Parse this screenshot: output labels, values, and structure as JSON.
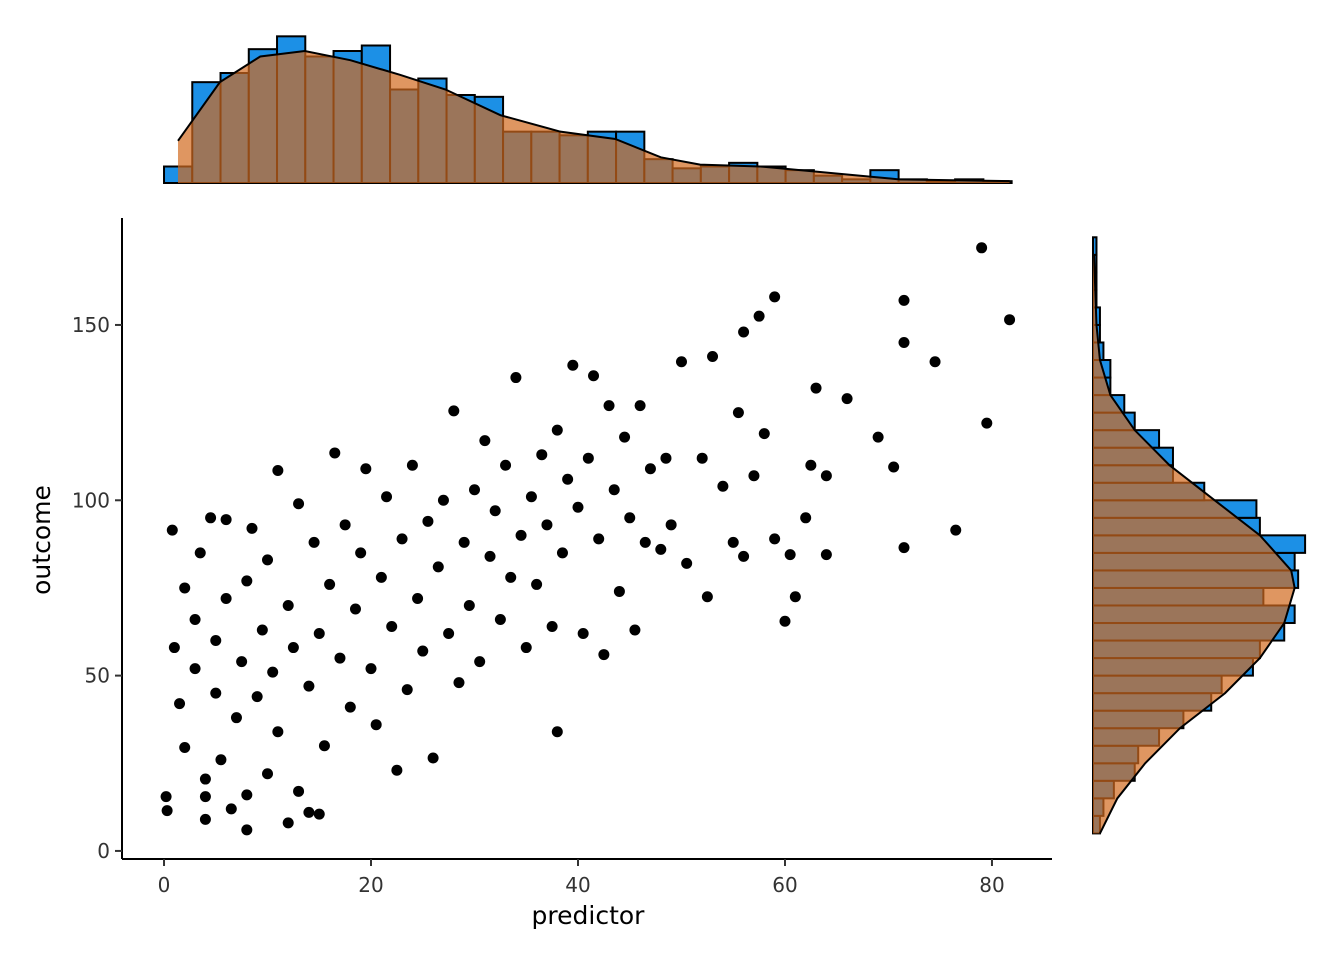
{
  "chart_data": [
    {
      "type": "scatter",
      "x_label": "predictor",
      "y_label": "outcome",
      "color": "#000000",
      "xlim": [
        -4.06,
        85.8
      ],
      "ylim": [
        -2.3,
        180.5
      ],
      "xticks": [
        0,
        20,
        40,
        60,
        80
      ],
      "yticks": [
        0,
        50,
        100,
        150
      ],
      "x": [
        0.2,
        0.3,
        0.8,
        1,
        1.5,
        2,
        2,
        3,
        3,
        3.5,
        4,
        4,
        4.5,
        4,
        5,
        5,
        5.5,
        6,
        6,
        6.5,
        7,
        7.5,
        8,
        8,
        8,
        8.5,
        9,
        9.5,
        10,
        10,
        10.5,
        11,
        11,
        12,
        12,
        12.5,
        13,
        13,
        14,
        14.5,
        14,
        15,
        15,
        15.5,
        16,
        16.5,
        17,
        17.5,
        18,
        18.5,
        19,
        19.5,
        20,
        20.5,
        21,
        21.5,
        22,
        22.5,
        23,
        23.5,
        24,
        24.5,
        25,
        25.5,
        26,
        26.5,
        27,
        27.5,
        28,
        28.5,
        29,
        29.5,
        30,
        30.5,
        31,
        31.5,
        32,
        32.5,
        33,
        33.5,
        34,
        34.5,
        35,
        35.5,
        36,
        36.5,
        37,
        37.5,
        38,
        38,
        38.5,
        39,
        39.5,
        40,
        40.5,
        41,
        41.5,
        42,
        42.5,
        43,
        43.5,
        44,
        44.5,
        45,
        45.5,
        46,
        46.5,
        47,
        48,
        48.5,
        49,
        50,
        50.5,
        52,
        52.5,
        53,
        54,
        55,
        55.5,
        56,
        56,
        57,
        57.5,
        58,
        59,
        59,
        60,
        60.5,
        61,
        62,
        62.5,
        63,
        64,
        64,
        66,
        69,
        70.5,
        71.5,
        71.5,
        71.5,
        74.5,
        76.5,
        79,
        79.5,
        81.7
      ],
      "y": [
        15.5,
        11.5,
        91.5,
        58,
        42,
        75,
        29.5,
        66,
        52,
        85,
        20.5,
        9,
        95,
        15.5,
        60,
        45,
        26,
        72,
        94.5,
        12,
        38,
        54,
        6,
        16,
        77,
        92,
        44,
        63,
        22,
        83,
        51,
        34,
        108.5,
        8,
        70,
        58,
        17,
        99,
        47,
        88,
        11,
        10.5,
        62,
        30,
        76,
        113.5,
        55,
        93,
        41,
        69,
        85,
        109,
        52,
        36,
        78,
        101,
        64,
        23,
        89,
        46,
        110,
        72,
        57,
        94,
        26.5,
        81,
        100,
        62,
        125.5,
        48,
        88,
        70,
        103,
        54,
        117,
        84,
        97,
        66,
        110,
        78,
        135,
        90,
        58,
        101,
        76,
        113,
        93,
        64,
        120,
        34,
        85,
        106,
        138.5,
        98,
        62,
        112,
        135.5,
        89,
        56,
        127,
        103,
        74,
        118,
        95,
        63,
        127,
        88,
        109,
        86,
        112,
        93,
        139.5,
        82,
        112,
        72.5,
        141,
        104,
        88,
        125,
        148,
        84,
        107,
        152.5,
        119,
        158,
        89,
        65.5,
        84.5,
        72.5,
        95,
        110,
        132,
        84.5,
        107,
        129,
        118,
        109.5,
        86.5,
        157,
        145,
        139.5,
        91.5,
        172,
        122,
        151.5
      ]
    },
    {
      "type": "histogram",
      "orientation": "vertical",
      "color": "#1c90e6",
      "density_color": "#d2691e",
      "xlim": [
        -4.06,
        85.8
      ],
      "ylim": [
        0,
        84
      ],
      "bins": [
        0,
        2.73,
        5.46,
        8.19,
        10.92,
        13.65,
        16.38,
        19.11,
        21.84,
        24.57,
        27.3,
        30.03,
        32.76,
        35.49,
        38.22,
        40.95,
        43.68,
        46.41,
        49.14,
        51.87,
        54.6,
        57.33,
        60.06,
        62.79,
        65.52,
        68.25,
        70.98,
        73.71,
        76.44,
        79.17,
        81.9
      ],
      "counts": [
        9,
        55,
        60,
        73,
        80,
        69,
        72,
        75,
        51,
        57,
        48,
        47,
        28,
        28,
        26,
        28,
        28,
        13,
        8,
        9,
        11,
        9,
        7,
        4,
        2,
        7,
        2,
        1,
        2,
        1
      ],
      "density": {
        "at": [
          1.35,
          5.4,
          9.3,
          13.6,
          18,
          22.8,
          27.2,
          32.5,
          38.3,
          43.6,
          48,
          51.8,
          57.6,
          63.4,
          71,
          81.7
        ],
        "counts": [
          23,
          55,
          69,
          72,
          67,
          59,
          51,
          37,
          28,
          24,
          14,
          10,
          9,
          6,
          2,
          1
        ]
      }
    },
    {
      "type": "histogram",
      "orientation": "horizontal",
      "color": "#1c90e6",
      "density_color": "#d2691e",
      "ylim": [
        -2.3,
        180.5
      ],
      "xlim": [
        0,
        65
      ],
      "bins": [
        5,
        10,
        15,
        20,
        25,
        30,
        35,
        40,
        45,
        50,
        55,
        60,
        65,
        70,
        75,
        80,
        85,
        90,
        95,
        100,
        105,
        110,
        115,
        120,
        125,
        130,
        135,
        140,
        145,
        150,
        155,
        160,
        165,
        170,
        175
      ],
      "counts": [
        2,
        3,
        6,
        12,
        13,
        19,
        26,
        34,
        37,
        46,
        48,
        55,
        58,
        49,
        59,
        58,
        61,
        48,
        47,
        32,
        23,
        23,
        19,
        12,
        9,
        5,
        5,
        3,
        2,
        2,
        1,
        1,
        1,
        1
      ],
      "density": {
        "at": [
          5,
          15,
          25,
          35,
          45,
          55,
          65,
          75,
          80,
          90,
          100,
          110,
          120,
          130,
          140,
          150,
          170
        ],
        "counts": [
          2,
          7,
          15,
          25,
          38,
          48,
          55,
          58,
          57,
          48,
          35,
          22,
          12,
          5,
          2,
          1,
          0.3
        ]
      }
    }
  ]
}
